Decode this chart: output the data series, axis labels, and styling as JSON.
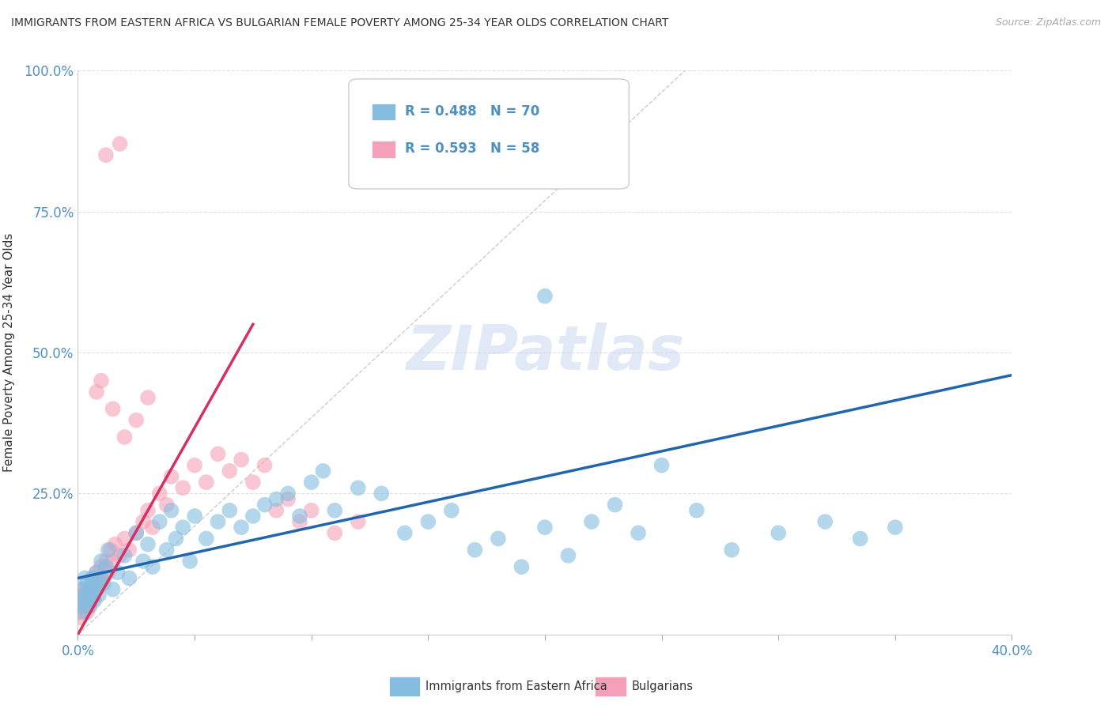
{
  "title": "IMMIGRANTS FROM EASTERN AFRICA VS BULGARIAN FEMALE POVERTY AMONG 25-34 YEAR OLDS CORRELATION CHART",
  "source": "Source: ZipAtlas.com",
  "yaxis_label": "Female Poverty Among 25-34 Year Olds",
  "legend_label1": "Immigrants from Eastern Africa",
  "legend_label2": "Bulgarians",
  "R1": 0.488,
  "N1": 70,
  "R2": 0.593,
  "N2": 58,
  "color_blue": "#85bde0",
  "color_pink": "#f5a0b8",
  "color_blue_dark": "#2166ac",
  "color_pink_dark": "#d63060",
  "color_dashed": "#c0c0c0",
  "color_grid": "#e0e0e0",
  "color_title": "#333333",
  "color_axis_text": "#5090c0",
  "background_color": "#ffffff",
  "watermark": "ZIPatlas",
  "xlim": [
    0.0,
    0.4
  ],
  "ylim": [
    0.0,
    1.0
  ],
  "blue_scatter_x": [
    0.001,
    0.001,
    0.002,
    0.002,
    0.003,
    0.003,
    0.004,
    0.004,
    0.005,
    0.005,
    0.006,
    0.006,
    0.007,
    0.007,
    0.008,
    0.008,
    0.009,
    0.01,
    0.01,
    0.011,
    0.012,
    0.013,
    0.015,
    0.017,
    0.02,
    0.022,
    0.025,
    0.028,
    0.03,
    0.032,
    0.035,
    0.038,
    0.04,
    0.042,
    0.045,
    0.048,
    0.05,
    0.055,
    0.06,
    0.065,
    0.07,
    0.075,
    0.08,
    0.085,
    0.09,
    0.095,
    0.1,
    0.105,
    0.11,
    0.12,
    0.13,
    0.14,
    0.15,
    0.16,
    0.17,
    0.18,
    0.19,
    0.2,
    0.21,
    0.22,
    0.23,
    0.24,
    0.25,
    0.265,
    0.28,
    0.3,
    0.32,
    0.335,
    0.35,
    0.2
  ],
  "blue_scatter_y": [
    0.04,
    0.06,
    0.05,
    0.08,
    0.07,
    0.1,
    0.06,
    0.09,
    0.05,
    0.08,
    0.07,
    0.1,
    0.06,
    0.09,
    0.08,
    0.11,
    0.07,
    0.1,
    0.13,
    0.09,
    0.12,
    0.15,
    0.08,
    0.11,
    0.14,
    0.1,
    0.18,
    0.13,
    0.16,
    0.12,
    0.2,
    0.15,
    0.22,
    0.17,
    0.19,
    0.13,
    0.21,
    0.17,
    0.2,
    0.22,
    0.19,
    0.21,
    0.23,
    0.24,
    0.25,
    0.21,
    0.27,
    0.29,
    0.22,
    0.26,
    0.25,
    0.18,
    0.2,
    0.22,
    0.15,
    0.17,
    0.12,
    0.19,
    0.14,
    0.2,
    0.23,
    0.18,
    0.3,
    0.22,
    0.15,
    0.18,
    0.2,
    0.17,
    0.19,
    0.6
  ],
  "pink_scatter_x": [
    0.001,
    0.001,
    0.001,
    0.002,
    0.002,
    0.002,
    0.003,
    0.003,
    0.004,
    0.004,
    0.005,
    0.005,
    0.006,
    0.006,
    0.007,
    0.007,
    0.008,
    0.008,
    0.009,
    0.01,
    0.011,
    0.012,
    0.013,
    0.014,
    0.015,
    0.016,
    0.018,
    0.02,
    0.022,
    0.025,
    0.028,
    0.03,
    0.032,
    0.035,
    0.038,
    0.04,
    0.045,
    0.05,
    0.055,
    0.06,
    0.065,
    0.07,
    0.075,
    0.08,
    0.085,
    0.09,
    0.095,
    0.1,
    0.11,
    0.12,
    0.012,
    0.018,
    0.008,
    0.01,
    0.015,
    0.02,
    0.025,
    0.03
  ],
  "pink_scatter_y": [
    0.03,
    0.05,
    0.07,
    0.04,
    0.06,
    0.08,
    0.05,
    0.07,
    0.04,
    0.06,
    0.05,
    0.08,
    0.06,
    0.09,
    0.07,
    0.1,
    0.08,
    0.11,
    0.09,
    0.12,
    0.1,
    0.13,
    0.11,
    0.15,
    0.13,
    0.16,
    0.14,
    0.17,
    0.15,
    0.18,
    0.2,
    0.22,
    0.19,
    0.25,
    0.23,
    0.28,
    0.26,
    0.3,
    0.27,
    0.32,
    0.29,
    0.31,
    0.27,
    0.3,
    0.22,
    0.24,
    0.2,
    0.22,
    0.18,
    0.2,
    0.85,
    0.87,
    0.43,
    0.45,
    0.4,
    0.35,
    0.38,
    0.42
  ],
  "blue_line_x": [
    0.0,
    0.4
  ],
  "blue_line_y": [
    0.1,
    0.46
  ],
  "pink_line_x": [
    0.0,
    0.075
  ],
  "pink_line_y": [
    0.0,
    0.55
  ],
  "dash_line_x": [
    0.0,
    0.26
  ],
  "dash_line_y": [
    0.0,
    1.0
  ]
}
